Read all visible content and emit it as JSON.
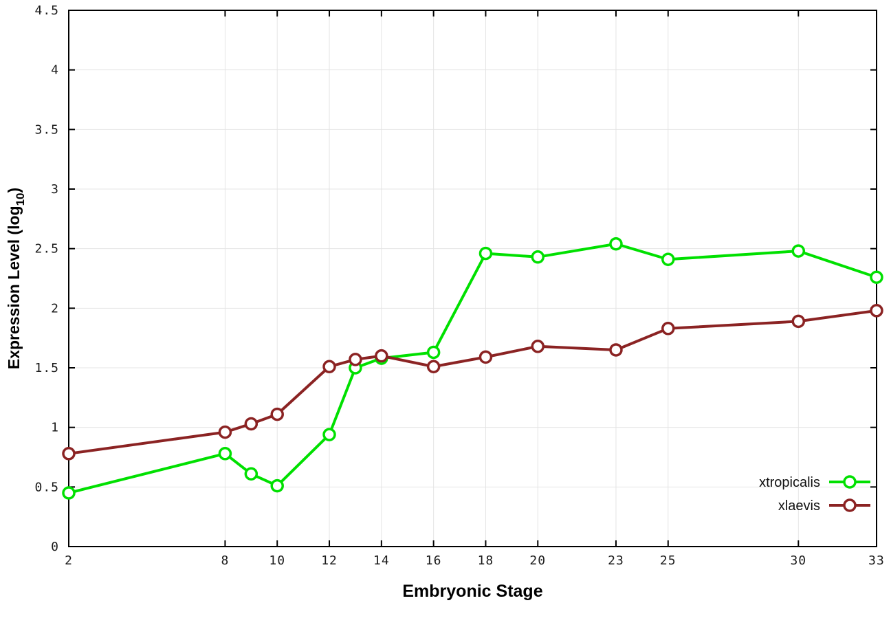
{
  "chart_data": {
    "type": "line",
    "title": "",
    "xlabel": "Embryonic Stage",
    "ylabel_main": "Expression Level (log",
    "ylabel_sub": "10",
    "ylabel_close": ")",
    "xlim": [
      2,
      33
    ],
    "ylim": [
      0,
      4.5
    ],
    "grid": true,
    "legend_position": "bottom-right",
    "xticks": [
      2,
      8,
      10,
      12,
      14,
      16,
      18,
      20,
      23,
      25,
      30,
      33
    ],
    "xtick_labels": [
      "2",
      "8",
      "10",
      "12",
      "14",
      "16",
      "18",
      "20",
      "23",
      "25",
      "30",
      "33"
    ],
    "yticks": [
      0,
      0.5,
      1,
      1.5,
      2,
      2.5,
      3,
      3.5,
      4,
      4.5
    ],
    "ytick_labels": [
      "0",
      "0.5",
      "1",
      "1.5",
      "2",
      "2.5",
      "3",
      "3.5",
      "4",
      "4.5"
    ],
    "x": [
      2,
      8,
      9,
      10,
      12,
      13,
      14,
      16,
      18,
      20,
      23,
      25,
      30,
      33
    ],
    "series": [
      {
        "name": "xtropicalis",
        "color": "#00e000",
        "values": [
          0.45,
          0.78,
          0.61,
          0.51,
          0.94,
          1.5,
          1.58,
          1.63,
          2.46,
          2.43,
          2.54,
          2.41,
          2.48,
          2.26
        ]
      },
      {
        "name": "xlaevis",
        "color": "#8b2323",
        "values": [
          0.78,
          0.96,
          1.03,
          1.11,
          1.51,
          1.57,
          1.6,
          1.51,
          1.59,
          1.68,
          1.65,
          1.83,
          1.89,
          1.98
        ]
      }
    ],
    "colors": {
      "grid": "#e4e4e4",
      "border": "#000000",
      "background": "#ffffff"
    }
  }
}
